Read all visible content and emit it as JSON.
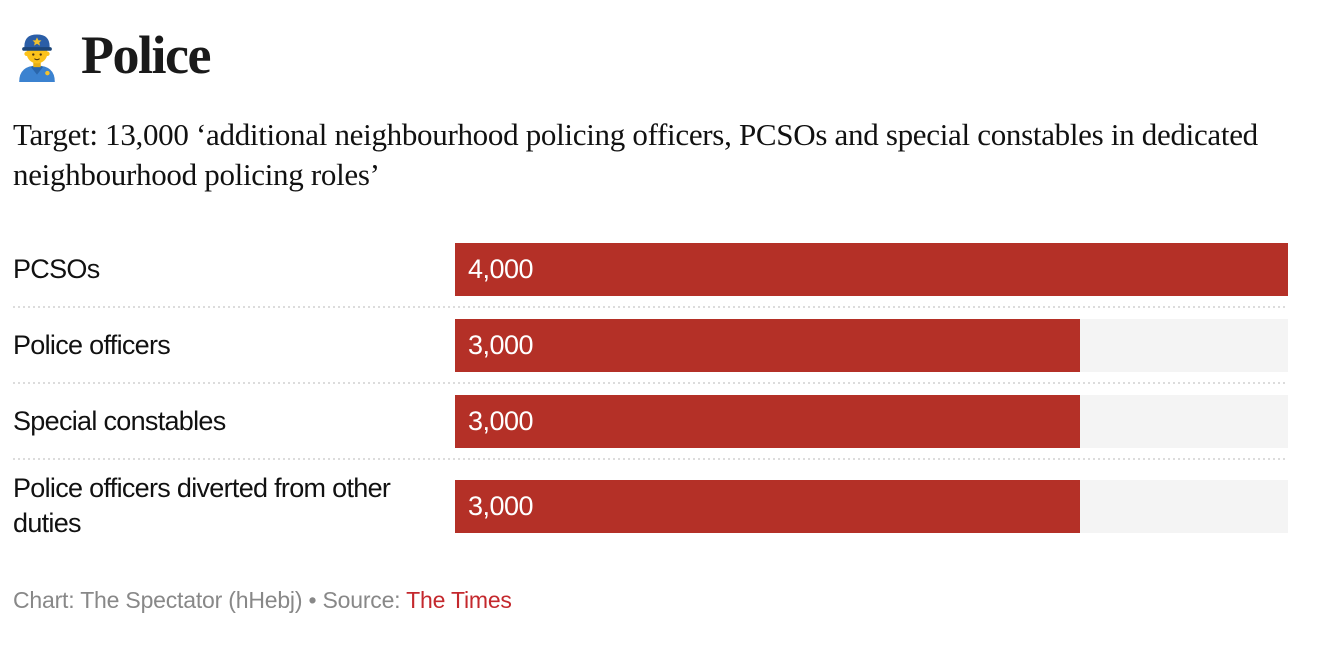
{
  "header": {
    "title": "Police",
    "subtitle": "Target: 13,000 ‘additional neighbourhood policing officers, PCSOs and special constables in dedicated neighbourhood policing roles’"
  },
  "chart_data": {
    "type": "bar",
    "orientation": "horizontal",
    "title": "Police",
    "subtitle": "Target: 13,000 ‘additional neighbourhood policing officers, PCSOs and special constables in dedicated neighbourhood policing roles’",
    "categories": [
      "PCSOs",
      "Police officers",
      "Special constables",
      "Police officers diverted from other duties"
    ],
    "values": [
      4000,
      3000,
      3000,
      3000
    ],
    "value_labels": [
      "4,000",
      "3,000",
      "3,000",
      "3,000"
    ],
    "xlim": [
      0,
      4000
    ],
    "grid": false,
    "legend": false,
    "bar_color": "#b43027",
    "track_color": "#f4f4f4",
    "value_label_color": "#ffffff"
  },
  "footer": {
    "credit_prefix": "Chart: The Spectator (hHebj) • Source: ",
    "source_label": "The Times"
  },
  "colors": {
    "bar_red": "#b43027",
    "track_gray": "#f4f4f4",
    "separator_gray": "#dcdcdc",
    "footer_gray": "#888888",
    "link_red": "#c4282d",
    "text_black": "#111111"
  }
}
